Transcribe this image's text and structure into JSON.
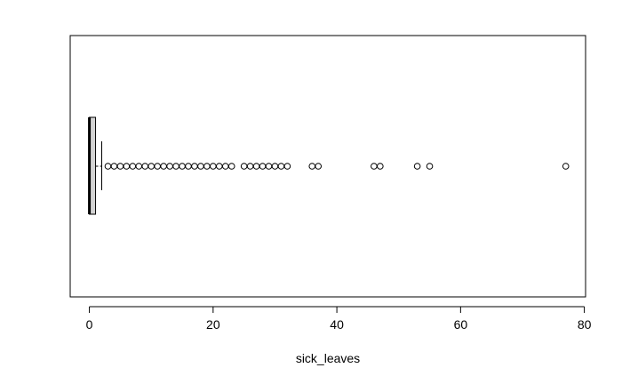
{
  "chart_data": {
    "type": "boxplot",
    "orientation": "horizontal",
    "title": "",
    "xlabel": "sick_leaves",
    "ylabel": "",
    "xlim": [
      -3.1,
      80.2
    ],
    "x_ticks": [
      0,
      20,
      40,
      60,
      80
    ],
    "x_tick_labels": [
      "0",
      "20",
      "40",
      "60",
      "80"
    ],
    "grid": false,
    "legend": "none",
    "box": {
      "min": 0,
      "q1": 0,
      "median": 0,
      "q3": 1,
      "whisker_low": 0,
      "whisker_high": 2,
      "fill": "#d3d3d3"
    },
    "outliers": [
      3,
      4,
      5,
      6,
      7,
      8,
      9,
      10,
      11,
      12,
      13,
      14,
      15,
      16,
      17,
      18,
      19,
      20,
      21,
      22,
      23,
      25,
      26,
      27,
      28,
      29,
      30,
      31,
      32,
      36,
      37,
      46,
      47,
      53,
      55,
      77
    ]
  }
}
